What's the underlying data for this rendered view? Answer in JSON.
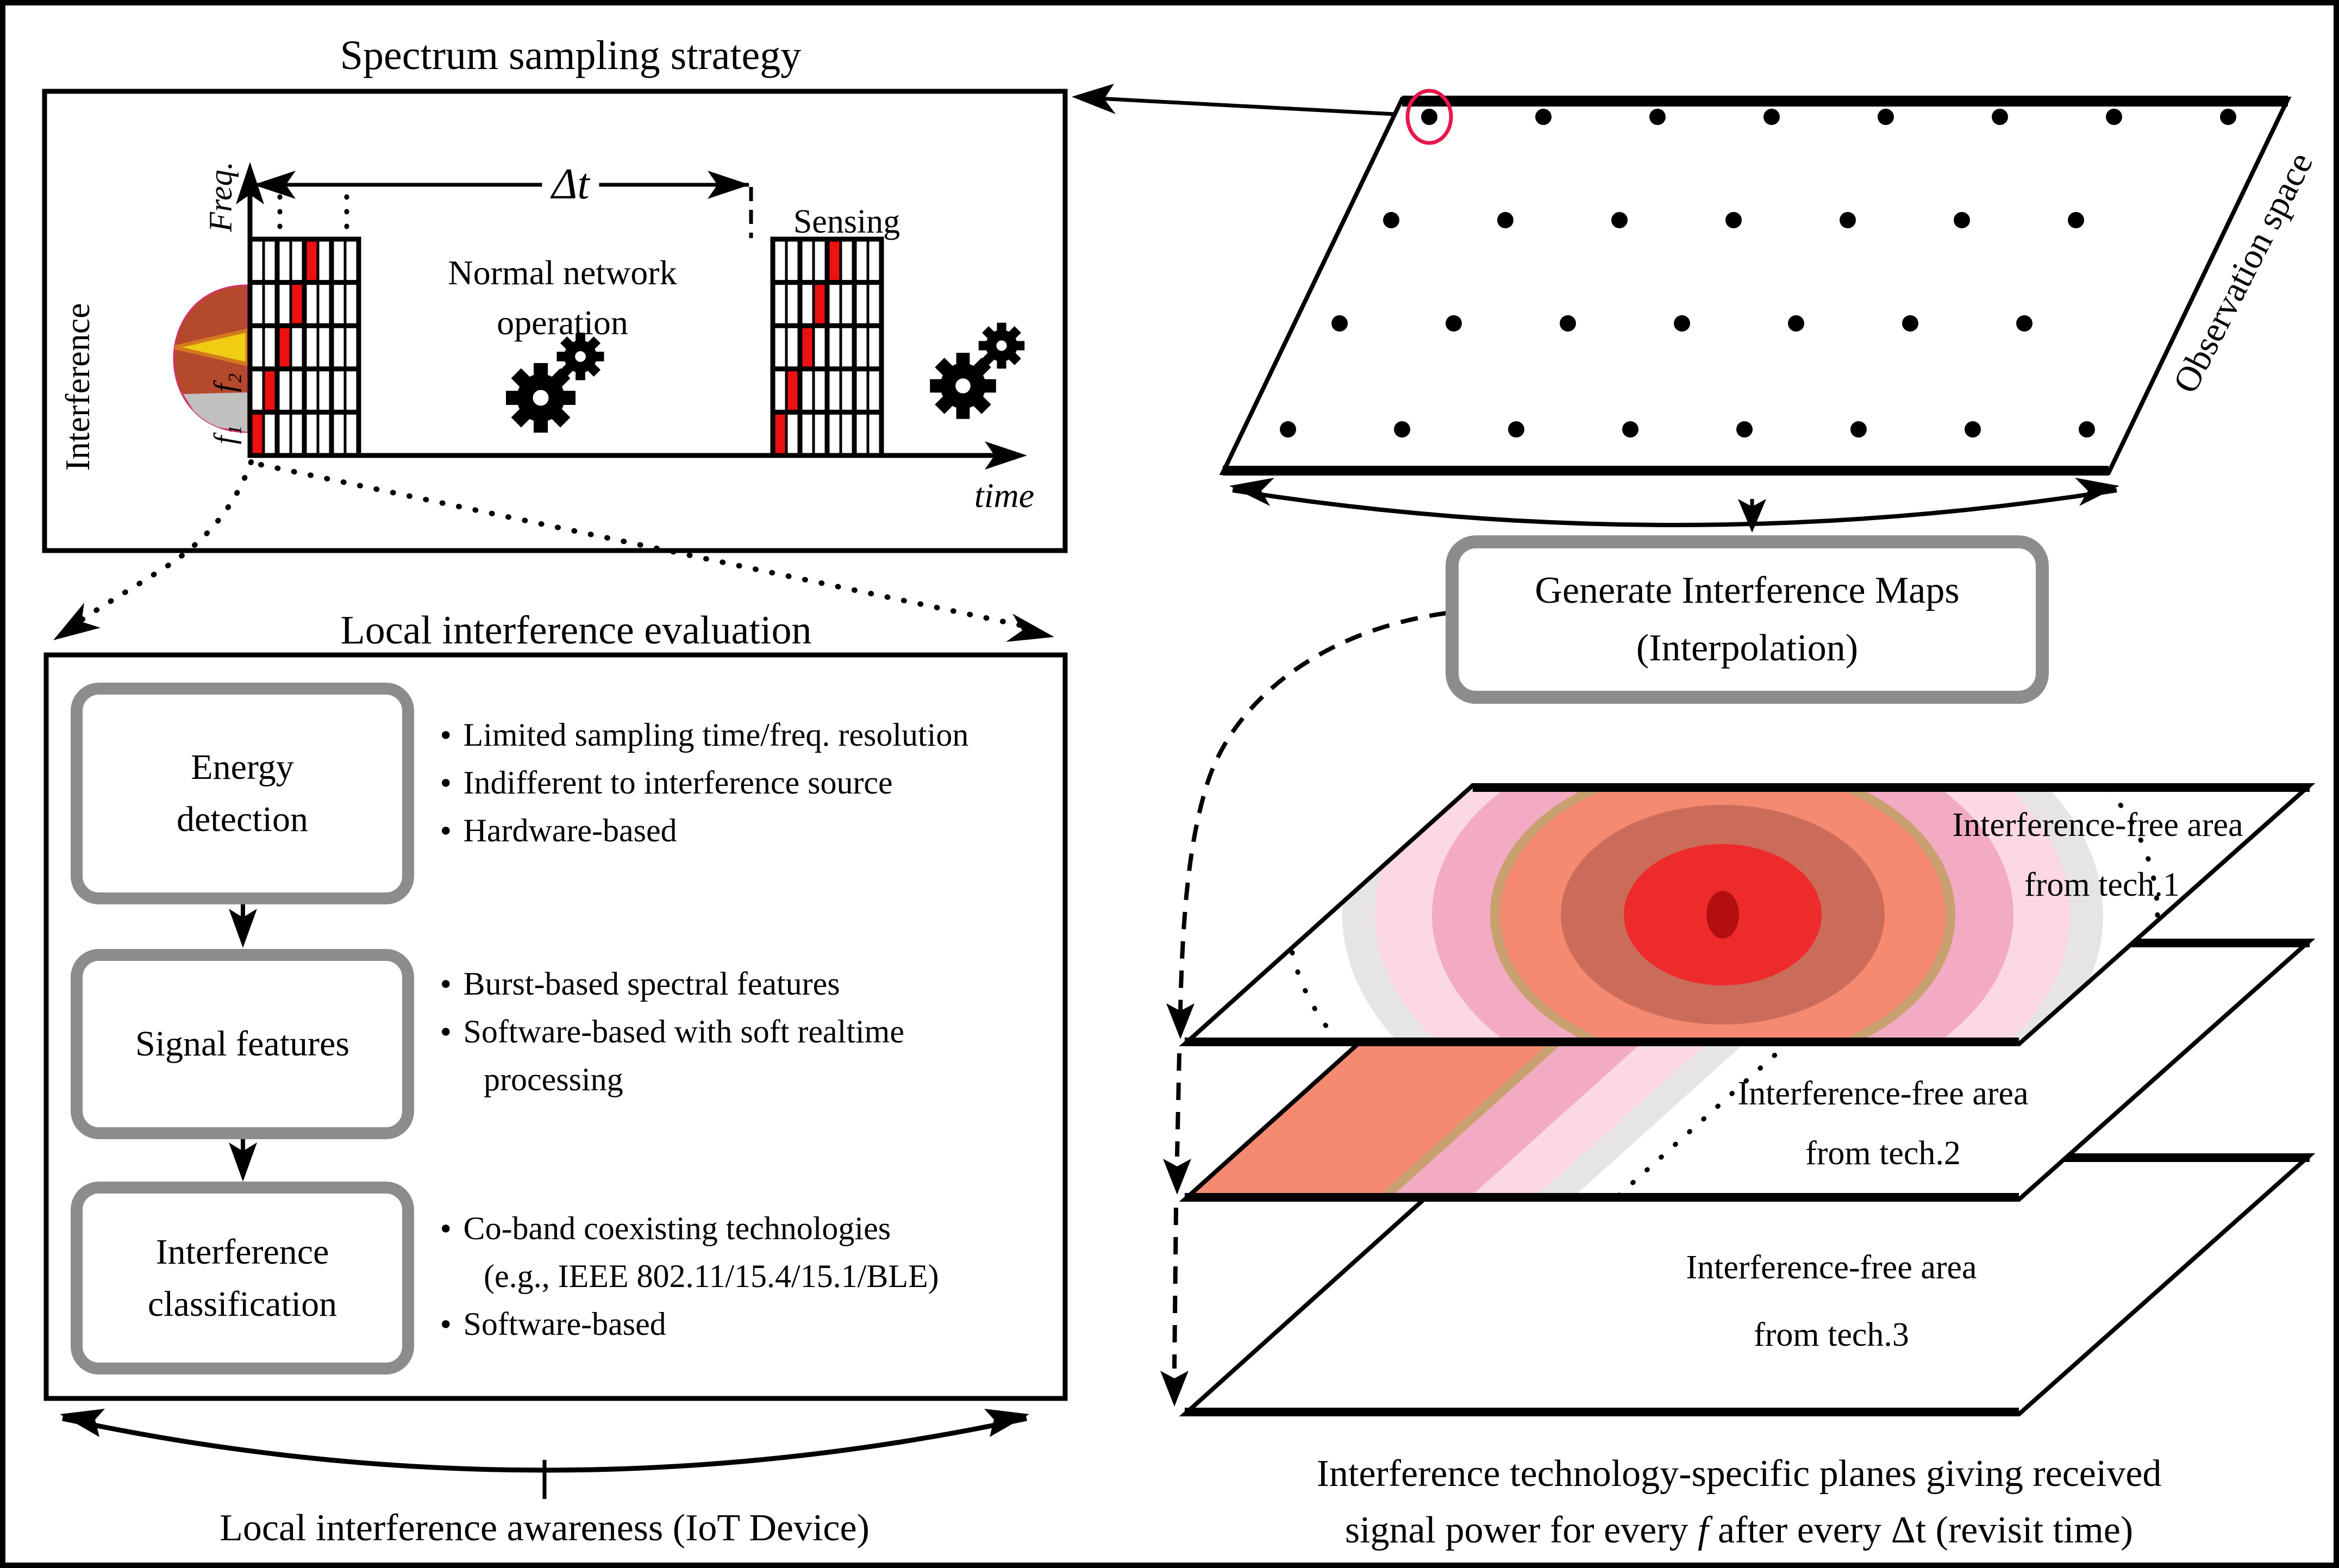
{
  "figure": {
    "spectrum": {
      "title": "Spectrum sampling strategy",
      "freq_axis": "Freq.",
      "time_axis": "time",
      "delta_t": "Δt",
      "sensing": "Sensing",
      "normal_op_line1": "Normal network",
      "normal_op_line2": "operation",
      "interference": "Interference",
      "f1": "f₁",
      "f2": "f₂"
    },
    "observation": {
      "label": "Observation space"
    },
    "generate": {
      "line1": "Generate Interference Maps",
      "line2": "(Interpolation)"
    },
    "planes": {
      "tech1_line1": "Interference-free area",
      "tech1_line2": "from tech.1",
      "tech2_line1": "Interference-free area",
      "tech2_line2": "from tech.2",
      "tech3_line1": "Interference-free area",
      "tech3_line2": "from tech.3",
      "caption_line1": "Interference technology-specific planes giving received",
      "caption_line2_pre": "signal power for every ",
      "caption_line2_f": "f",
      "caption_line2_post": " after every Δt (revisit time)"
    },
    "evaluation": {
      "title": "Local interference evaluation",
      "stage1_line1": "Energy",
      "stage1_line2": "detection",
      "stage1_b1": "Limited sampling time/freq. resolution",
      "stage1_b2": "Indifferent to interference source",
      "stage1_b3": "Hardware-based",
      "stage2_label": "Signal features",
      "stage2_b1": "Burst-based spectral features",
      "stage2_b2": "Software-based with soft realtime",
      "stage2_b2_cont": "processing",
      "stage3_line1": "Interference",
      "stage3_line2": "classification",
      "stage3_b1": "Co-band coexisting technologies",
      "stage3_b1_cont": "(e.g., IEEE 802.11/15.4/15.1/BLE)",
      "stage3_b2": "Software-based",
      "footer": "Local interference awareness (IoT Device)"
    },
    "colors": {
      "red_cell": "#ee1111",
      "box_border_gray": "#8c8c8c",
      "heat_gray": "#e6e4e4",
      "heat_lightpink": "#fbd8e4",
      "heat_pink": "#f2abc2",
      "heat_tan": "#c9a06f",
      "heat_salmon": "#f58a70",
      "heat_brick": "#cb6c5b",
      "heat_red": "#ee2b2b",
      "heat_darkred": "#b40f0f",
      "icon_body": "#b5492c",
      "icon_yellow": "#f0cd13",
      "icon_gray": "#c2bfbf",
      "circle_red": "#e8174b"
    }
  }
}
